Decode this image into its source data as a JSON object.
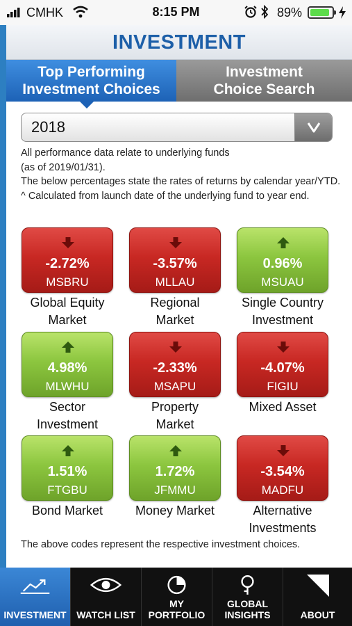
{
  "status": {
    "carrier": "CMHK",
    "time": "8:15 PM",
    "battery": "89%",
    "battery_level": 0.89
  },
  "header": {
    "title": "INVESTMENT"
  },
  "tabs": [
    {
      "label_line1": "Top Performing",
      "label_line2": "Investment Choices"
    },
    {
      "label_line1": "Investment",
      "label_line2": "Choice Search"
    }
  ],
  "year_select": {
    "value": "2018"
  },
  "notes": [
    "All performance data relate to underlying funds",
    "(as of 2019/01/31).",
    "The below percentages state the rates of returns by calendar year/YTD.",
    "^ Calculated from launch date of the underlying fund to year end."
  ],
  "tiles": [
    {
      "pct": "-2.72%",
      "code": "MSBRU",
      "label_line1": "Global Equity",
      "label_line2": "Market",
      "trend": "down"
    },
    {
      "pct": "-3.57%",
      "code": "MLLAU",
      "label_line1": "Regional",
      "label_line2": "Market",
      "trend": "down"
    },
    {
      "pct": "0.96%",
      "code": "MSUAU",
      "label_line1": "Single Country",
      "label_line2": "Investment",
      "trend": "up"
    },
    {
      "pct": "4.98%",
      "code": "MLWHU",
      "label_line1": "Sector",
      "label_line2": "Investment",
      "trend": "up"
    },
    {
      "pct": "-2.33%",
      "code": "MSAPU",
      "label_line1": "Property",
      "label_line2": "Market",
      "trend": "down"
    },
    {
      "pct": "-4.07%",
      "code": "FIGIU",
      "label_line1": "Mixed Asset",
      "label_line2": "",
      "trend": "down"
    },
    {
      "pct": "1.51%",
      "code": "FTGBU",
      "label_line1": "Bond Market",
      "label_line2": "",
      "trend": "up"
    },
    {
      "pct": "1.72%",
      "code": "JFMMU",
      "label_line1": "Money Market",
      "label_line2": "",
      "trend": "up"
    },
    {
      "pct": "-3.54%",
      "code": "MADFU",
      "label_line1": "Alternative",
      "label_line2": "Investments",
      "trend": "down"
    }
  ],
  "footer_note": "The above codes represent the respective investment choices.",
  "bottom_nav": [
    {
      "label_line1": "INVESTMENT",
      "label_line2": "",
      "icon": "chart-trend-icon"
    },
    {
      "label_line1": "WATCH LIST",
      "label_line2": "",
      "icon": "eye-icon"
    },
    {
      "label_line1": "MY",
      "label_line2": "PORTFOLIO",
      "icon": "pie-chart-icon"
    },
    {
      "label_line1": "GLOBAL",
      "label_line2": "INSIGHTS",
      "icon": "magnifier-icon"
    },
    {
      "label_line1": "ABOUT",
      "label_line2": "",
      "icon": "corner-flag-icon"
    }
  ],
  "colors": {
    "accent_blue": "#1d5fa8",
    "down_red": "#c82823",
    "up_green": "#8cc63f",
    "nav_bg": "#111111"
  }
}
